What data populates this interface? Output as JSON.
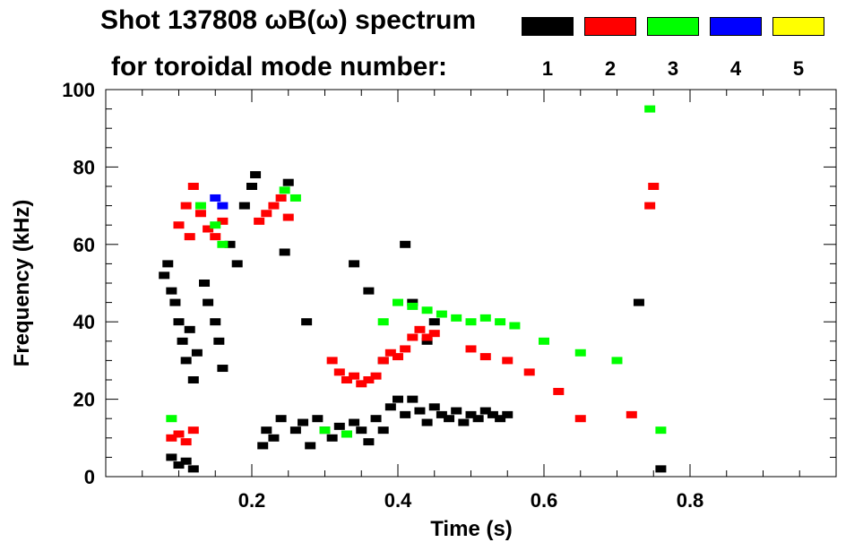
{
  "chart_data": {
    "type": "scatter",
    "title": "Shot 137808 ωB(ω) spectrum",
    "subtitle": "for toroidal mode number:",
    "xlabel": "Time (s)",
    "ylabel": "Frequency (kHz)",
    "xlim": [
      0.0,
      1.0
    ],
    "ylim": [
      0,
      100
    ],
    "xticks": [
      "0.2",
      "0.4",
      "0.6",
      "0.8"
    ],
    "xtick_values": [
      0.2,
      0.4,
      0.6,
      0.8
    ],
    "yticks": [
      "0",
      "20",
      "40",
      "60",
      "80",
      "100"
    ],
    "ytick_values": [
      0,
      20,
      40,
      60,
      80,
      100
    ],
    "grid": false,
    "legend_position": "top-right",
    "series": [
      {
        "name": "1",
        "color": "#000000",
        "points": [
          [
            0.08,
            52
          ],
          [
            0.085,
            55
          ],
          [
            0.09,
            48
          ],
          [
            0.095,
            45
          ],
          [
            0.1,
            40
          ],
          [
            0.105,
            35
          ],
          [
            0.11,
            30
          ],
          [
            0.115,
            38
          ],
          [
            0.12,
            25
          ],
          [
            0.125,
            32
          ],
          [
            0.09,
            5
          ],
          [
            0.1,
            3
          ],
          [
            0.11,
            4
          ],
          [
            0.12,
            2
          ],
          [
            0.135,
            50
          ],
          [
            0.14,
            45
          ],
          [
            0.15,
            40
          ],
          [
            0.155,
            35
          ],
          [
            0.16,
            28
          ],
          [
            0.17,
            60
          ],
          [
            0.18,
            55
          ],
          [
            0.19,
            70
          ],
          [
            0.2,
            75
          ],
          [
            0.205,
            78
          ],
          [
            0.215,
            8
          ],
          [
            0.22,
            12
          ],
          [
            0.23,
            10
          ],
          [
            0.24,
            15
          ],
          [
            0.245,
            58
          ],
          [
            0.25,
            76
          ],
          [
            0.26,
            12
          ],
          [
            0.27,
            14
          ],
          [
            0.28,
            8
          ],
          [
            0.29,
            15
          ],
          [
            0.3,
            12
          ],
          [
            0.31,
            10
          ],
          [
            0.32,
            13
          ],
          [
            0.33,
            11
          ],
          [
            0.34,
            14
          ],
          [
            0.35,
            12
          ],
          [
            0.36,
            9
          ],
          [
            0.37,
            15
          ],
          [
            0.38,
            12
          ],
          [
            0.39,
            18
          ],
          [
            0.4,
            20
          ],
          [
            0.41,
            16
          ],
          [
            0.42,
            20
          ],
          [
            0.43,
            17
          ],
          [
            0.44,
            14
          ],
          [
            0.45,
            18
          ],
          [
            0.46,
            16
          ],
          [
            0.47,
            15
          ],
          [
            0.48,
            17
          ],
          [
            0.49,
            14
          ],
          [
            0.5,
            16
          ],
          [
            0.51,
            15
          ],
          [
            0.52,
            17
          ],
          [
            0.53,
            16
          ],
          [
            0.54,
            15
          ],
          [
            0.55,
            16
          ],
          [
            0.275,
            40
          ],
          [
            0.34,
            55
          ],
          [
            0.36,
            48
          ],
          [
            0.38,
            30
          ],
          [
            0.41,
            60
          ],
          [
            0.42,
            45
          ],
          [
            0.44,
            35
          ],
          [
            0.45,
            40
          ],
          [
            0.73,
            45
          ],
          [
            0.76,
            2
          ]
        ]
      },
      {
        "name": "2",
        "color": "#ff0000",
        "points": [
          [
            0.1,
            65
          ],
          [
            0.11,
            70
          ],
          [
            0.115,
            62
          ],
          [
            0.12,
            75
          ],
          [
            0.13,
            68
          ],
          [
            0.14,
            64
          ],
          [
            0.15,
            62
          ],
          [
            0.16,
            66
          ],
          [
            0.21,
            66
          ],
          [
            0.22,
            68
          ],
          [
            0.23,
            70
          ],
          [
            0.24,
            72
          ],
          [
            0.25,
            67
          ],
          [
            0.09,
            10
          ],
          [
            0.1,
            11
          ],
          [
            0.11,
            9
          ],
          [
            0.12,
            12
          ],
          [
            0.31,
            30
          ],
          [
            0.32,
            27
          ],
          [
            0.33,
            25
          ],
          [
            0.34,
            26
          ],
          [
            0.35,
            24
          ],
          [
            0.36,
            25
          ],
          [
            0.37,
            26
          ],
          [
            0.38,
            30
          ],
          [
            0.39,
            32
          ],
          [
            0.4,
            31
          ],
          [
            0.41,
            33
          ],
          [
            0.42,
            36
          ],
          [
            0.43,
            38
          ],
          [
            0.44,
            36
          ],
          [
            0.45,
            37
          ],
          [
            0.5,
            33
          ],
          [
            0.52,
            31
          ],
          [
            0.55,
            30
          ],
          [
            0.58,
            27
          ],
          [
            0.62,
            22
          ],
          [
            0.65,
            15
          ],
          [
            0.72,
            16
          ],
          [
            0.745,
            70
          ],
          [
            0.75,
            75
          ]
        ]
      },
      {
        "name": "3",
        "color": "#00ff00",
        "points": [
          [
            0.09,
            15
          ],
          [
            0.13,
            70
          ],
          [
            0.15,
            65
          ],
          [
            0.16,
            60
          ],
          [
            0.245,
            74
          ],
          [
            0.26,
            72
          ],
          [
            0.3,
            12
          ],
          [
            0.33,
            11
          ],
          [
            0.38,
            40
          ],
          [
            0.4,
            45
          ],
          [
            0.42,
            44
          ],
          [
            0.44,
            43
          ],
          [
            0.46,
            42
          ],
          [
            0.48,
            41
          ],
          [
            0.5,
            40
          ],
          [
            0.52,
            41
          ],
          [
            0.54,
            40
          ],
          [
            0.56,
            39
          ],
          [
            0.6,
            35
          ],
          [
            0.65,
            32
          ],
          [
            0.7,
            30
          ],
          [
            0.745,
            95
          ],
          [
            0.76,
            12
          ]
        ]
      },
      {
        "name": "4",
        "color": "#0000ff",
        "points": [
          [
            0.15,
            72
          ],
          [
            0.16,
            70
          ]
        ]
      },
      {
        "name": "5",
        "color": "#ffff00",
        "points": []
      }
    ]
  }
}
